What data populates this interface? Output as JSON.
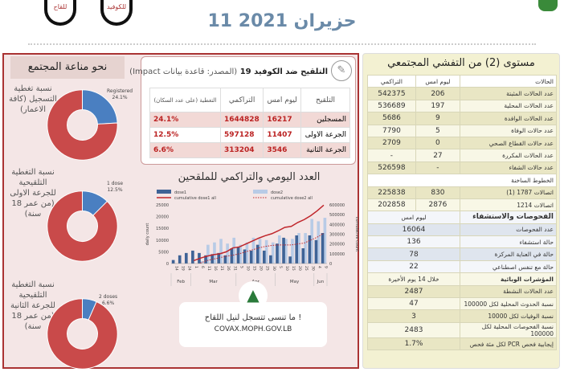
{
  "header": {
    "date": "11 حزيران 2021",
    "bubble_vaccine": "للقاح",
    "bubble_covid": "للكوفيد"
  },
  "left": {
    "title": "نحو مناعة المجتمع",
    "donuts": [
      {
        "label": "نسبة تغطية التسجيل (كافة الاعمار)",
        "slice_label": "Registered",
        "value": "24.1%",
        "fraction": 0.241
      },
      {
        "label": "نسبة التغطية التلقيحية للجرعة الاولى (من عمر 18 سنة)",
        "slice_label": "1 dose",
        "value": "12.5%",
        "fraction": 0.125
      },
      {
        "label": "نسبة التغطية التلقيحية للجرعة الثانية (من عمر 18 سنة)",
        "slice_label": "2 doses",
        "value": "6.6%",
        "fraction": 0.066
      }
    ],
    "colors": {
      "main": "#c94a4a",
      "slice": "#4a7fc1"
    }
  },
  "vaccination": {
    "title": "التلقيح ضد الكوفيد 19",
    "source": "(المصدر: قاعدة بيانات Impact)",
    "headers": [
      "التلقيح",
      "ليوم امس",
      "التراكمي",
      "التغطية (على عدد السكان)"
    ],
    "rows": [
      [
        "المسجلين",
        "16217",
        "1644828",
        "24.1%"
      ],
      [
        "الجرعة الاولى",
        "11407",
        "597128",
        "12.5%"
      ],
      [
        "الجرعة الثانية",
        "3546",
        "313204",
        "6.6%"
      ]
    ]
  },
  "chart_data": {
    "type": "bar",
    "title": "العدد اليومي والتراكمي للملقحين",
    "xlabel": "",
    "ylabel": "daily count",
    "y2label": "cumulative count",
    "ylim": [
      0,
      25000
    ],
    "y2lim": [
      0,
      600000
    ],
    "yticks": [
      0,
      5000,
      10000,
      15000,
      20000,
      25000
    ],
    "y2ticks": [
      0,
      100000,
      200000,
      300000,
      400000,
      500000,
      600000
    ],
    "categories": [
      "14",
      "19",
      "24",
      "1",
      "6",
      "11",
      "16",
      "21",
      "26",
      "31",
      "5",
      "10",
      "15",
      "20",
      "25",
      "30",
      "5",
      "10",
      "15",
      "20",
      "25",
      "30",
      "4",
      "9"
    ],
    "months": [
      {
        "name": "Feb",
        "span": 3
      },
      {
        "name": "Mar",
        "span": 7
      },
      {
        "name": "Apr",
        "span": 6
      },
      {
        "name": "May",
        "span": 6
      },
      {
        "name": "Jun",
        "span": 2
      }
    ],
    "series": [
      {
        "name": "dose1",
        "kind": "bar",
        "color": "#3f6396",
        "values": [
          1500,
          3500,
          4500,
          5500,
          4500,
          3500,
          4000,
          4500,
          3500,
          6500,
          7000,
          6000,
          5500,
          8000,
          5500,
          3500,
          8500,
          11000,
          3000,
          12000,
          6500,
          12000,
          10000,
          13000
        ]
      },
      {
        "name": "dose2",
        "kind": "bar",
        "color": "#b8cbe6",
        "values": [
          0,
          0,
          0,
          0,
          1000,
          8000,
          9000,
          10500,
          8500,
          11000,
          8000,
          9000,
          11000,
          10500,
          10000,
          9000,
          12000,
          10500,
          10500,
          13000,
          13000,
          19000,
          18000,
          19500
        ]
      },
      {
        "name": "cumulative dose1 all",
        "kind": "line",
        "color": "#c0262b",
        "values": [
          null,
          null,
          null,
          30000,
          55000,
          75000,
          90000,
          100000,
          120000,
          160000,
          170000,
          200000,
          230000,
          260000,
          285000,
          305000,
          335000,
          370000,
          380000,
          420000,
          450000,
          490000,
          540000,
          597128
        ]
      },
      {
        "name": "cumulative dose2 all",
        "kind": "dotted",
        "color": "#c0262b",
        "values": [
          null,
          null,
          null,
          null,
          5000,
          30000,
          45000,
          60000,
          75000,
          85000,
          100000,
          120000,
          140000,
          160000,
          175000,
          185000,
          190000,
          190000,
          190000,
          200000,
          210000,
          240000,
          270000,
          310000
        ]
      }
    ]
  },
  "covax": {
    "text": "ما تنسى تتسجل لنيل اللقاح !",
    "url": "COVAX.MOPH.GOV.LB"
  },
  "right": {
    "title": "مستوى (2) من التفشي المجتمعي",
    "cases_header": [
      "الحالات",
      "ليوم امس",
      "التراكمي"
    ],
    "cases": [
      [
        "عدد الحالات المثبتة",
        "206",
        "542375"
      ],
      [
        "عدد الحالات المحلية",
        "197",
        "536689"
      ],
      [
        "عدد الحالات الوافدة",
        "9",
        "5686"
      ],
      [
        "عدد حالات الوفاة",
        "5",
        "7790"
      ],
      [
        "عدد حالات القطاع الصحي",
        "0",
        "2709"
      ],
      [
        "عدد الحالات المكررة",
        "27",
        "-"
      ],
      [
        "عدد حالات الشفاء",
        "-",
        "526598"
      ]
    ],
    "hotline_title": "الخطوط الساخنة",
    "hotlines": [
      [
        "اتصالات 1787 (1)",
        "830",
        "225838"
      ],
      [
        "اتصالات 1214",
        "2876",
        "202858"
      ]
    ],
    "tests_header": [
      "الفحوصات والاستشفاء",
      "ليوم امس"
    ],
    "tests": [
      [
        "عدد الفحوصات",
        "16064"
      ],
      [
        "حالة استشفاء",
        "136"
      ],
      [
        "حالة في العناية المركزة",
        "78"
      ],
      [
        "حالة مع تنفس اصطناعي",
        "22"
      ]
    ],
    "indicators_header": [
      "المؤشرات الوبائية",
      "خلال 14 يوم الأخيرة"
    ],
    "indicators": [
      [
        "عدد الحالات النشطة",
        "2487"
      ],
      [
        "نسبة الحدوث المحلية لكل 100000",
        "47"
      ],
      [
        "نسبة الوفيات لكل 10000",
        "3"
      ],
      [
        "نسبة الفحوصات المحلية لكل 100000",
        "2483"
      ],
      [
        "إيجابية فحص PCR لكل مئة فحص",
        "1.7%"
      ]
    ]
  }
}
